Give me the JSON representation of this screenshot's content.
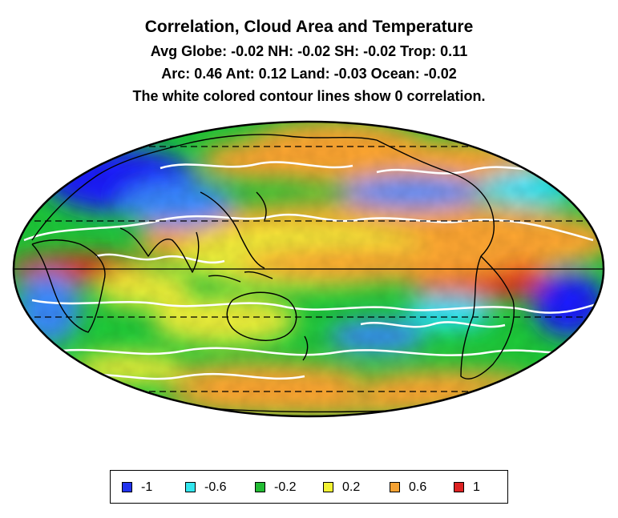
{
  "title": {
    "main": "Correlation, Cloud Area and Temperature",
    "line2": "Avg Globe: -0.02  NH: -0.02  SH: -0.02  Trop: 0.11",
    "line3": "Arc: 0.46  Ant: 0.12  Land: -0.03 Ocean: -0.02",
    "line4": "The white colored contour lines show 0 correlation."
  },
  "map": {
    "projection": "Mollweide",
    "graticule_style": "dashed",
    "colormap": [
      "#1a1aff",
      "#3b8cff",
      "#28e6ff",
      "#1ecc3a",
      "#f2f23a",
      "#ffa733",
      "#e62b1e"
    ],
    "zero_contour_color": "#ffffff",
    "coastline_color": "#000000"
  },
  "legend": {
    "items": [
      {
        "label": "-1",
        "color": "#2233ee"
      },
      {
        "label": "-0.6",
        "color": "#33e6ee"
      },
      {
        "label": "-0.2",
        "color": "#22bb33"
      },
      {
        "label": "0.2",
        "color": "#f2f233"
      },
      {
        "label": "0.6",
        "color": "#f5a233"
      },
      {
        "label": "1",
        "color": "#dd2222"
      }
    ]
  }
}
